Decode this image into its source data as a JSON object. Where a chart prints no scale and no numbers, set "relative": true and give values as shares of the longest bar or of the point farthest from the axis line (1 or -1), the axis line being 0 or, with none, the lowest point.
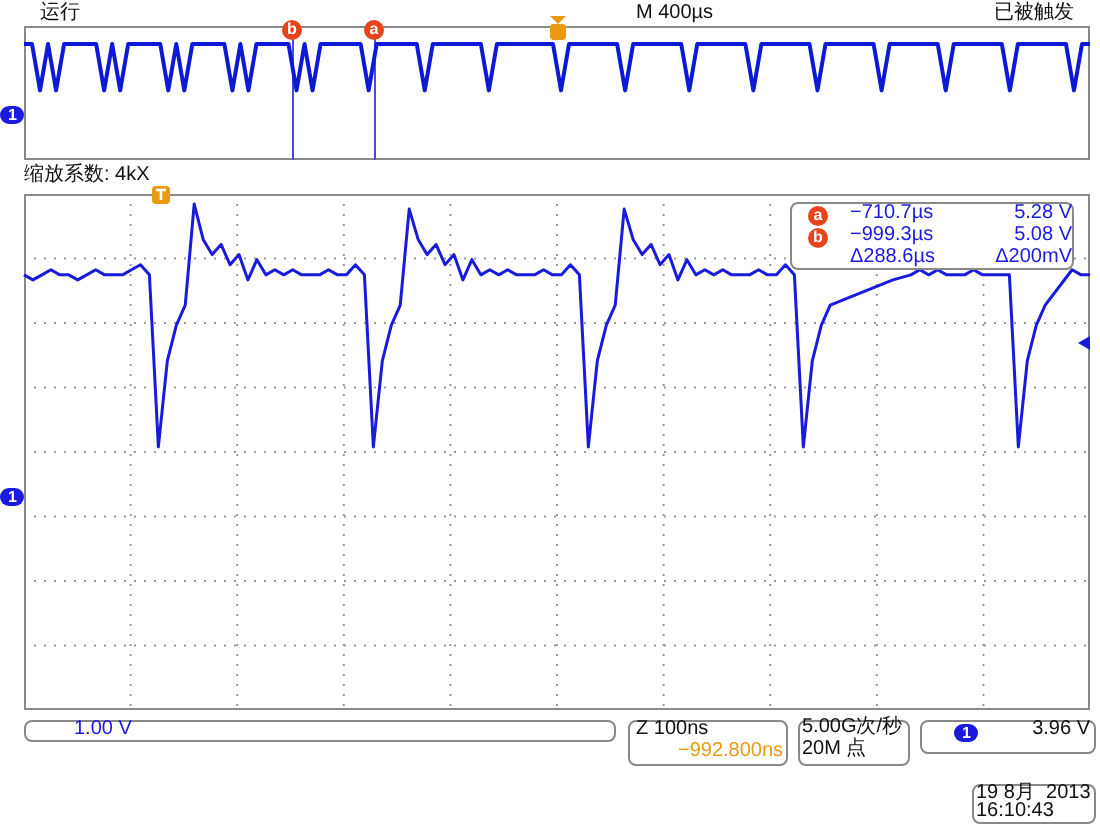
{
  "chart_data": [
    {
      "type": "line",
      "relative": true,
      "tick_labels": false,
      "grid": false,
      "legend": false,
      "categories": [
        null,
        null,
        null,
        null,
        null,
        null,
        null,
        null,
        null,
        null,
        null,
        null,
        null,
        null,
        null,
        null,
        null,
        null,
        null,
        null,
        null,
        null,
        null,
        null,
        null,
        null,
        null,
        null,
        null,
        null,
        null,
        null,
        null,
        null,
        null,
        null,
        null,
        null,
        null,
        null,
        null,
        null,
        null,
        null,
        null,
        null,
        null,
        null,
        null,
        null,
        null,
        null,
        null,
        null,
        null,
        null,
        null,
        null,
        null,
        null,
        null,
        null,
        null,
        null,
        null,
        null,
        null,
        null,
        null,
        null,
        null,
        null,
        null,
        null,
        null,
        null,
        null,
        null,
        null,
        null,
        null,
        null,
        null,
        null,
        null,
        null,
        null,
        null,
        null,
        null,
        null,
        null,
        null,
        null,
        null,
        null,
        null,
        null,
        null,
        null,
        null,
        null,
        null,
        null,
        null,
        null,
        null,
        null,
        null,
        null,
        null,
        null,
        null,
        null,
        null,
        null,
        null,
        null,
        null,
        null,
        null,
        null,
        null,
        null,
        null,
        null,
        null,
        null,
        null,
        null,
        null,
        null,
        null,
        null
      ],
      "series": [
        {
          "color": "#0c1ad6",
          "values": [
            1,
            1,
            0.6,
            1,
            0.6,
            1,
            1,
            1,
            1,
            1,
            0.6,
            1,
            0.6,
            1,
            1,
            1,
            1,
            1,
            0.6,
            1,
            0.6,
            1,
            1,
            1,
            1,
            1,
            0.6,
            1,
            0.6,
            1,
            1,
            1,
            1,
            1,
            0.6,
            1,
            0.6,
            1,
            1,
            1,
            1,
            1,
            1,
            0.6,
            1,
            1,
            1,
            1,
            1,
            1,
            0.6,
            1,
            1,
            1,
            1,
            1,
            1,
            1,
            0.6,
            1,
            1,
            1,
            1,
            1,
            1,
            1,
            1,
            0.6,
            1,
            1,
            1,
            1,
            1,
            1,
            1,
            0.6,
            1,
            1,
            1,
            1,
            1,
            1,
            1,
            0.6,
            1,
            1,
            1,
            1,
            1,
            1,
            1,
            0.6,
            1,
            1,
            1,
            1,
            1,
            1,
            1,
            0.6,
            1,
            1,
            1,
            1,
            1,
            1,
            1,
            0.6,
            1,
            1,
            1,
            1,
            1,
            1,
            1,
            0.6,
            1,
            1,
            1,
            1,
            1,
            1,
            1,
            0.6,
            1,
            1,
            1,
            1,
            1,
            1,
            1,
            0.6,
            1,
            1
          ]
        }
      ],
      "annotations": [
        "运行",
        "M 400µs",
        "已被触发",
        "1",
        "b",
        "a"
      ]
    },
    {
      "type": "line",
      "relative": true,
      "tick_labels": false,
      "grid": true,
      "legend": false,
      "categories": [
        null,
        null,
        null,
        null,
        null,
        null,
        null,
        null,
        null,
        null,
        null,
        null,
        null,
        null,
        null,
        null,
        null,
        null,
        null,
        null,
        null,
        null,
        null,
        null,
        null,
        null,
        null,
        null,
        null,
        null,
        null,
        null,
        null,
        null,
        null,
        null,
        null,
        null,
        null,
        null,
        null,
        null,
        null,
        null,
        null,
        null,
        null,
        null,
        null,
        null,
        null,
        null,
        null,
        null,
        null,
        null,
        null,
        null,
        null,
        null,
        null,
        null,
        null,
        null,
        null,
        null,
        null,
        null,
        null,
        null,
        null,
        null,
        null,
        null,
        null,
        null,
        null,
        null,
        null,
        null,
        null,
        null,
        null,
        null,
        null,
        null,
        null,
        null,
        null,
        null,
        null,
        null,
        null,
        null,
        null,
        null,
        null,
        null,
        null,
        null,
        null,
        null,
        null,
        null,
        null,
        null,
        null,
        null,
        null,
        null,
        null,
        null,
        null,
        null,
        null,
        null,
        null,
        null,
        null,
        null
      ],
      "series": [
        {
          "color": "#1a1adc",
          "values": [
            0.86,
            0.85,
            0.86,
            0.87,
            0.86,
            0.86,
            0.85,
            0.86,
            0.87,
            0.86,
            0.86,
            0.86,
            0.87,
            0.88,
            0.86,
            0.52,
            0.69,
            0.76,
            0.8,
            1,
            0.93,
            0.9,
            0.92,
            0.88,
            0.9,
            0.85,
            0.89,
            0.86,
            0.87,
            0.86,
            0.87,
            0.86,
            0.86,
            0.86,
            0.87,
            0.86,
            0.86,
            0.88,
            0.86,
            0.52,
            0.69,
            0.76,
            0.8,
            0.99,
            0.93,
            0.9,
            0.92,
            0.88,
            0.9,
            0.85,
            0.89,
            0.86,
            0.87,
            0.86,
            0.87,
            0.86,
            0.86,
            0.86,
            0.87,
            0.86,
            0.86,
            0.88,
            0.86,
            0.52,
            0.69,
            0.76,
            0.8,
            0.99,
            0.93,
            0.9,
            0.92,
            0.88,
            0.9,
            0.85,
            0.89,
            0.86,
            0.87,
            0.86,
            0.87,
            0.86,
            0.86,
            0.86,
            0.87,
            0.86,
            0.86,
            0.88,
            0.86,
            0.52,
            0.69,
            0.76,
            0.8,
            null,
            null,
            null,
            null,
            null,
            null,
            0.85,
            null,
            0.86,
            0.87,
            0.86,
            0.87,
            0.86,
            0.86,
            0.86,
            0.87,
            0.86,
            0.86,
            0.86,
            0.86,
            0.52,
            0.69,
            0.76,
            0.8,
            null,
            null,
            0.87,
            0.86,
            0.86
          ]
        }
      ],
      "annotations": [
        "缩放系数: 4kX",
        "a",
        "−710.7µs",
        "5.28 V",
        "b",
        "−999.3µs",
        "5.08 V",
        "Δ288.6µs",
        "Δ200mV",
        "1",
        "1.00 V",
        "Z 100ns",
        "−992.800ns",
        "5.00G次/秒",
        "20M 点",
        "1",
        "3.96 V",
        "19 8月  2013",
        "16:10:43"
      ]
    }
  ]
}
